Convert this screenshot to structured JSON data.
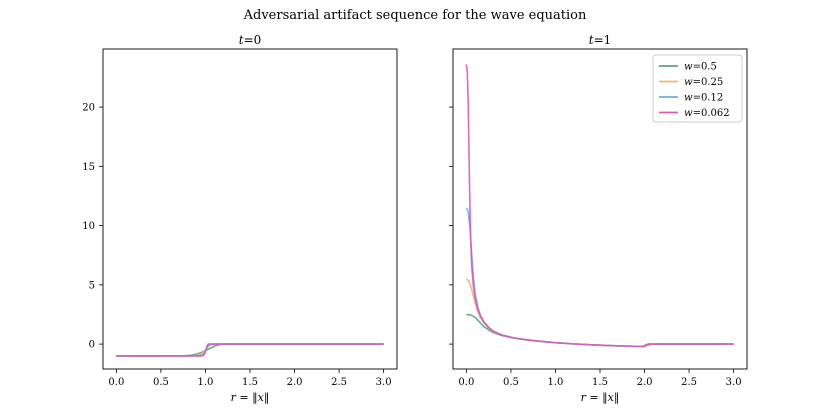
{
  "figure": {
    "title": "Adversarial artifact sequence for the wave equation"
  },
  "chart_data": [
    {
      "type": "line",
      "title": "t=0",
      "xlabel": "r = ‖x‖",
      "ylabel": "",
      "xlim": [
        -0.15,
        3.15
      ],
      "ylim": [
        -2.1,
        24.9
      ],
      "xticks": [
        "0.0",
        "0.5",
        "1.0",
        "1.5",
        "2.0",
        "2.5",
        "3.0"
      ],
      "yticks": [
        "0",
        "5",
        "10",
        "15",
        "20"
      ],
      "series": [
        {
          "name": "w=0.5",
          "color": "#5aa876",
          "points": [
            [
              0.0,
              -1.0
            ],
            [
              0.5,
              -1.0
            ],
            [
              0.75,
              -0.99
            ],
            [
              0.8,
              -0.97
            ],
            [
              0.85,
              -0.92
            ],
            [
              0.9,
              -0.84
            ],
            [
              0.95,
              -0.72
            ],
            [
              1.0,
              -0.56
            ],
            [
              1.05,
              -0.36
            ],
            [
              1.1,
              -0.18
            ],
            [
              1.15,
              -0.06
            ],
            [
              1.2,
              -0.01
            ],
            [
              1.25,
              0.0
            ],
            [
              3.0,
              0.0
            ]
          ]
        },
        {
          "name": "w=0.25",
          "color": "#f5b26b",
          "points": [
            [
              0.0,
              -1.0
            ],
            [
              0.85,
              -1.0
            ],
            [
              0.9,
              -0.97
            ],
            [
              0.95,
              -0.85
            ],
            [
              1.0,
              -0.55
            ],
            [
              1.03,
              -0.2
            ],
            [
              1.06,
              -0.05
            ],
            [
              1.12,
              0.0
            ],
            [
              3.0,
              0.0
            ]
          ]
        },
        {
          "name": "w=0.12",
          "color": "#73a7e6",
          "points": [
            [
              0.0,
              -1.0
            ],
            [
              0.93,
              -1.0
            ],
            [
              0.97,
              -0.92
            ],
            [
              1.0,
              -0.6
            ],
            [
              1.03,
              -0.1
            ],
            [
              1.06,
              0.0
            ],
            [
              3.0,
              0.0
            ]
          ]
        },
        {
          "name": "w=0.062",
          "color": "#d65bb8",
          "points": [
            [
              0.0,
              -1.0
            ],
            [
              0.97,
              -1.0
            ],
            [
              0.99,
              -0.85
            ],
            [
              1.01,
              -0.3
            ],
            [
              1.03,
              0.0
            ],
            [
              3.0,
              0.0
            ]
          ]
        }
      ]
    },
    {
      "type": "line",
      "title": "t=1",
      "xlabel": "r = ‖x‖",
      "ylabel": "",
      "xlim": [
        -0.15,
        3.15
      ],
      "ylim": [
        -2.1,
        24.9
      ],
      "xticks": [
        "0.0",
        "0.5",
        "1.0",
        "1.5",
        "2.0",
        "2.5",
        "3.0"
      ],
      "yticks": [
        "0",
        "5",
        "10",
        "15",
        "20"
      ],
      "legend": "upper right",
      "series": [
        {
          "name": "w=0.5",
          "color": "#5aa876",
          "points": [
            [
              0.0,
              2.5
            ],
            [
              0.05,
              2.45
            ],
            [
              0.1,
              2.25
            ],
            [
              0.15,
              1.85
            ],
            [
              0.2,
              1.45
            ],
            [
              0.25,
              1.2
            ],
            [
              0.3,
              0.98
            ],
            [
              0.4,
              0.72
            ],
            [
              0.5,
              0.55
            ],
            [
              0.6,
              0.43
            ],
            [
              0.7,
              0.33
            ],
            [
              0.8,
              0.25
            ],
            [
              1.0,
              0.12
            ],
            [
              1.2,
              0.02
            ],
            [
              1.4,
              -0.06
            ],
            [
              1.6,
              -0.12
            ],
            [
              1.8,
              -0.17
            ],
            [
              1.95,
              -0.19
            ],
            [
              2.0,
              -0.2
            ],
            [
              2.03,
              -0.1
            ],
            [
              2.07,
              -0.03
            ],
            [
              2.12,
              0.0
            ],
            [
              3.0,
              0.0
            ]
          ]
        },
        {
          "name": "w=0.25",
          "color": "#f5b26b",
          "points": [
            [
              0.0,
              5.5
            ],
            [
              0.03,
              5.3
            ],
            [
              0.06,
              4.6
            ],
            [
              0.09,
              3.7
            ],
            [
              0.12,
              2.9
            ],
            [
              0.16,
              2.2
            ],
            [
              0.2,
              1.75
            ],
            [
              0.25,
              1.35
            ],
            [
              0.3,
              1.08
            ],
            [
              0.4,
              0.76
            ],
            [
              0.5,
              0.57
            ],
            [
              0.6,
              0.44
            ],
            [
              0.7,
              0.34
            ],
            [
              0.8,
              0.26
            ],
            [
              1.0,
              0.12
            ],
            [
              1.2,
              0.02
            ],
            [
              1.4,
              -0.06
            ],
            [
              1.6,
              -0.12
            ],
            [
              1.8,
              -0.17
            ],
            [
              1.97,
              -0.2
            ],
            [
              2.0,
              -0.15
            ],
            [
              2.04,
              -0.03
            ],
            [
              2.08,
              0.0
            ],
            [
              3.0,
              0.0
            ]
          ]
        },
        {
          "name": "w=0.12",
          "color": "#73a7e6",
          "points": [
            [
              0.0,
              11.5
            ],
            [
              0.02,
              11.2
            ],
            [
              0.04,
              9.8
            ],
            [
              0.06,
              7.6
            ],
            [
              0.08,
              5.6
            ],
            [
              0.1,
              4.2
            ],
            [
              0.13,
              3.1
            ],
            [
              0.16,
              2.4
            ],
            [
              0.2,
              1.85
            ],
            [
              0.25,
              1.4
            ],
            [
              0.3,
              1.1
            ],
            [
              0.4,
              0.77
            ],
            [
              0.5,
              0.58
            ],
            [
              0.6,
              0.44
            ],
            [
              0.7,
              0.34
            ],
            [
              0.8,
              0.26
            ],
            [
              1.0,
              0.12
            ],
            [
              1.2,
              0.02
            ],
            [
              1.4,
              -0.06
            ],
            [
              1.6,
              -0.12
            ],
            [
              1.8,
              -0.17
            ],
            [
              1.98,
              -0.2
            ],
            [
              2.01,
              -0.08
            ],
            [
              2.04,
              0.0
            ],
            [
              3.0,
              0.0
            ]
          ]
        },
        {
          "name": "w=0.062",
          "color": "#d65bb8",
          "points": [
            [
              0.0,
              23.6
            ],
            [
              0.01,
              23.0
            ],
            [
              0.02,
              20.5
            ],
            [
              0.03,
              16.0
            ],
            [
              0.04,
              11.5
            ],
            [
              0.05,
              8.5
            ],
            [
              0.06,
              6.6
            ],
            [
              0.08,
              4.8
            ],
            [
              0.1,
              3.8
            ],
            [
              0.13,
              2.9
            ],
            [
              0.16,
              2.3
            ],
            [
              0.2,
              1.85
            ],
            [
              0.25,
              1.4
            ],
            [
              0.3,
              1.1
            ],
            [
              0.4,
              0.77
            ],
            [
              0.5,
              0.58
            ],
            [
              0.6,
              0.44
            ],
            [
              0.7,
              0.34
            ],
            [
              0.8,
              0.26
            ],
            [
              1.0,
              0.12
            ],
            [
              1.2,
              0.02
            ],
            [
              1.4,
              -0.06
            ],
            [
              1.6,
              -0.12
            ],
            [
              1.8,
              -0.17
            ],
            [
              1.99,
              -0.2
            ],
            [
              2.02,
              -0.05
            ],
            [
              2.04,
              0.0
            ],
            [
              3.0,
              0.0
            ]
          ]
        }
      ]
    }
  ]
}
